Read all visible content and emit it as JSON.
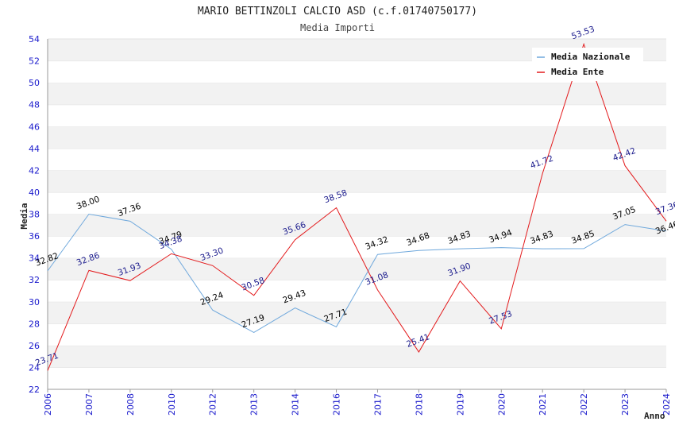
{
  "chart_data": {
    "type": "line",
    "title": "MARIO BETTINZOLI CALCIO ASD (c.f.01740750177)",
    "subtitle": "Media Importi",
    "xlabel": "Anno",
    "ylabel": "Media",
    "ylim": [
      22,
      54
    ],
    "ytick_step": 2,
    "grid": true,
    "legend_position": "top-right",
    "categories": [
      "2006",
      "2007",
      "2008",
      "2010",
      "2012",
      "2013",
      "2014",
      "2016",
      "2017",
      "2018",
      "2019",
      "2020",
      "2021",
      "2022",
      "2023",
      "2024"
    ],
    "series": [
      {
        "name": "Media Nazionale",
        "color": "#6fa8dc",
        "label_color": "#000000",
        "values": [
          32.82,
          38.0,
          37.36,
          34.79,
          29.24,
          27.19,
          29.43,
          27.71,
          34.32,
          34.68,
          34.83,
          34.94,
          34.83,
          34.85,
          37.05,
          36.46
        ],
        "labels": [
          "32.82",
          "38.00",
          "37.36",
          "34.79",
          "29.24",
          "27.19",
          "29.43",
          "27.71",
          "34.32",
          "34.68",
          "34.83",
          "34.94",
          "34.83",
          "34.85",
          "37.05",
          "36.46"
        ]
      },
      {
        "name": "Media Ente",
        "color": "#e31a1c",
        "label_color": "#1a1a8c",
        "values": [
          23.71,
          32.86,
          31.93,
          34.38,
          33.3,
          30.58,
          35.66,
          38.58,
          31.08,
          25.41,
          31.9,
          27.53,
          41.72,
          53.53,
          42.42,
          37.36
        ],
        "labels": [
          "23.71",
          "32.86",
          "31.93",
          "34.38",
          "33.30",
          "30.58",
          "35.66",
          "38.58",
          "31.08",
          "25.41",
          "31.90",
          "27.53",
          "41.72",
          "53.53",
          "42.42",
          "37.36"
        ]
      }
    ]
  }
}
